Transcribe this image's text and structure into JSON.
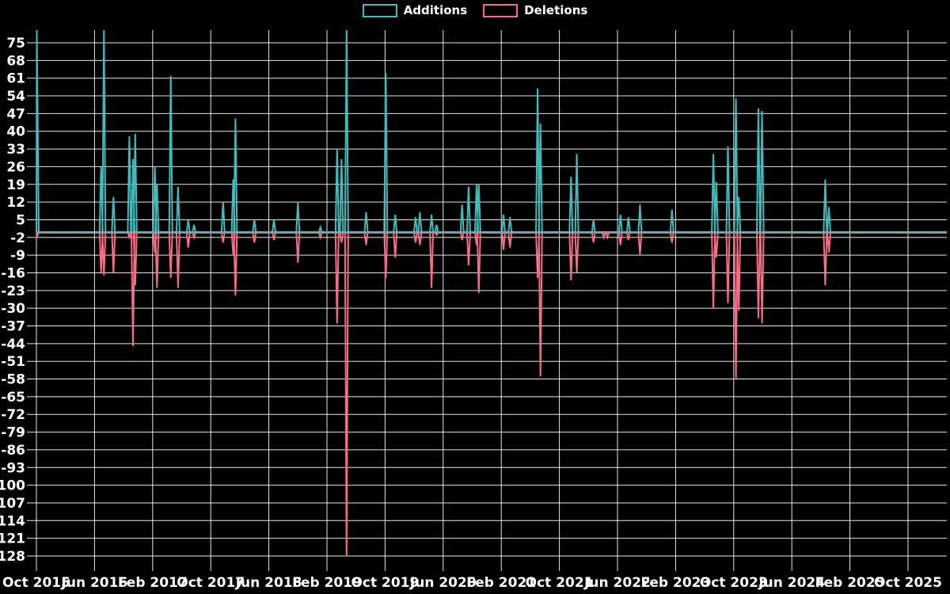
{
  "legend": {
    "additions_label": "Additions",
    "deletions_label": "Deletions",
    "position": "top-center"
  },
  "colors": {
    "background": "#000000",
    "grid": "#ffffff",
    "text": "#ffffff",
    "additions": "#3fbcbc",
    "deletions": "#f76d85",
    "zero_baseline": "#7fa3a6"
  },
  "chart_data": {
    "type": "line",
    "title": "",
    "xlabel": "",
    "ylabel": "",
    "grid": true,
    "legend_position": "top-center",
    "x_axis": {
      "start": "Oct 2015",
      "end": "Oct 2025",
      "months_between_ticks": 8,
      "tick_labels": [
        "Oct 2015",
        "Jun 2016",
        "Feb 2017",
        "Oct 2017",
        "Jun 2018",
        "Feb 2019",
        "Oct 2019",
        "Jun 2020",
        "Feb 2021",
        "Oct 2021",
        "Jun 2022",
        "Feb 2023",
        "Oct 2023",
        "Jun 2024",
        "Feb 2025",
        "Oct 2025"
      ]
    },
    "y_axis": {
      "min": -128,
      "max": 75,
      "step": 7,
      "ticks": [
        75,
        68,
        61,
        54,
        47,
        40,
        33,
        26,
        19,
        12,
        5,
        -2,
        -9,
        -16,
        -23,
        -30,
        -37,
        -44,
        -51,
        -58,
        -65,
        -72,
        -79,
        -86,
        -93,
        -100,
        -107,
        -114,
        -121,
        -128
      ]
    },
    "note": "x values are months after Oct 2015; baseline is 0 between spikes. Values of 80 are spikes clipped at the top of the plot (true value above axis range).",
    "series": [
      {
        "name": "Additions",
        "points": [
          [
            0,
            80
          ],
          [
            8.9,
            26
          ],
          [
            9.3,
            80
          ],
          [
            10.6,
            14
          ],
          [
            12.8,
            38
          ],
          [
            13.3,
            29
          ],
          [
            13.6,
            39
          ],
          [
            16.3,
            26
          ],
          [
            16.6,
            19
          ],
          [
            18.5,
            62
          ],
          [
            19.5,
            18
          ],
          [
            20.9,
            5
          ],
          [
            21.7,
            3
          ],
          [
            25.7,
            12
          ],
          [
            27.1,
            21
          ],
          [
            27.4,
            45
          ],
          [
            30,
            5
          ],
          [
            32.7,
            5
          ],
          [
            36,
            12
          ],
          [
            39.1,
            2
          ],
          [
            41.4,
            33
          ],
          [
            42,
            29
          ],
          [
            42.7,
            80
          ],
          [
            45.4,
            8
          ],
          [
            48.1,
            63
          ],
          [
            49.4,
            7
          ],
          [
            52.2,
            6
          ],
          [
            52.8,
            8
          ],
          [
            54.4,
            7
          ],
          [
            55.1,
            3
          ],
          [
            58.6,
            11
          ],
          [
            59.5,
            18
          ],
          [
            60.6,
            19
          ],
          [
            60.9,
            19
          ],
          [
            64.3,
            7
          ],
          [
            65.2,
            6
          ],
          [
            69,
            57
          ],
          [
            69.4,
            43
          ],
          [
            73.6,
            22
          ],
          [
            74.4,
            31
          ],
          [
            76.7,
            5
          ],
          [
            80.4,
            7
          ],
          [
            81.5,
            6
          ],
          [
            83.1,
            11
          ],
          [
            87.5,
            9
          ],
          [
            93.2,
            31
          ],
          [
            93.6,
            20
          ],
          [
            95.2,
            34
          ],
          [
            96.3,
            53
          ],
          [
            96.7,
            14
          ],
          [
            99.4,
            49
          ],
          [
            99.9,
            48
          ],
          [
            108.6,
            21
          ],
          [
            109.1,
            10
          ]
        ]
      },
      {
        "name": "Deletions",
        "points": [
          [
            0,
            -2
          ],
          [
            8.9,
            -16
          ],
          [
            9.3,
            -17
          ],
          [
            10.6,
            -16
          ],
          [
            12.8,
            -2
          ],
          [
            13.3,
            -45
          ],
          [
            13.6,
            -21
          ],
          [
            16.3,
            -8
          ],
          [
            16.6,
            -22
          ],
          [
            18.5,
            -18
          ],
          [
            19.5,
            -22
          ],
          [
            20.9,
            -6
          ],
          [
            21.7,
            -2
          ],
          [
            25.7,
            -4
          ],
          [
            27.1,
            -9
          ],
          [
            27.4,
            -25
          ],
          [
            30,
            -4
          ],
          [
            32.7,
            -3
          ],
          [
            36,
            -12
          ],
          [
            39.1,
            -2
          ],
          [
            41.4,
            -36
          ],
          [
            42,
            -4
          ],
          [
            42.7,
            -128
          ],
          [
            45.4,
            -5
          ],
          [
            48.1,
            -18
          ],
          [
            49.4,
            -10
          ],
          [
            52.2,
            -4
          ],
          [
            52.8,
            -5
          ],
          [
            54.4,
            -22
          ],
          [
            55.1,
            -1
          ],
          [
            58.6,
            -3
          ],
          [
            59.5,
            -13
          ],
          [
            60.6,
            -5
          ],
          [
            60.9,
            -24
          ],
          [
            64.3,
            -7
          ],
          [
            65.2,
            -6
          ],
          [
            69,
            -18
          ],
          [
            69.4,
            -57
          ],
          [
            73.6,
            -19
          ],
          [
            74.4,
            -16
          ],
          [
            76.7,
            -4
          ],
          [
            78.1,
            -2
          ],
          [
            78.6,
            -2
          ],
          [
            80.4,
            -5
          ],
          [
            81.5,
            -3
          ],
          [
            83.1,
            -9
          ],
          [
            87.5,
            -4
          ],
          [
            93.2,
            -30
          ],
          [
            93.6,
            -10
          ],
          [
            95.2,
            -28
          ],
          [
            96.3,
            -58
          ],
          [
            96.7,
            -31
          ],
          [
            99.4,
            -34
          ],
          [
            99.9,
            -36
          ],
          [
            108.6,
            -21
          ],
          [
            109.1,
            -8
          ]
        ]
      }
    ]
  }
}
